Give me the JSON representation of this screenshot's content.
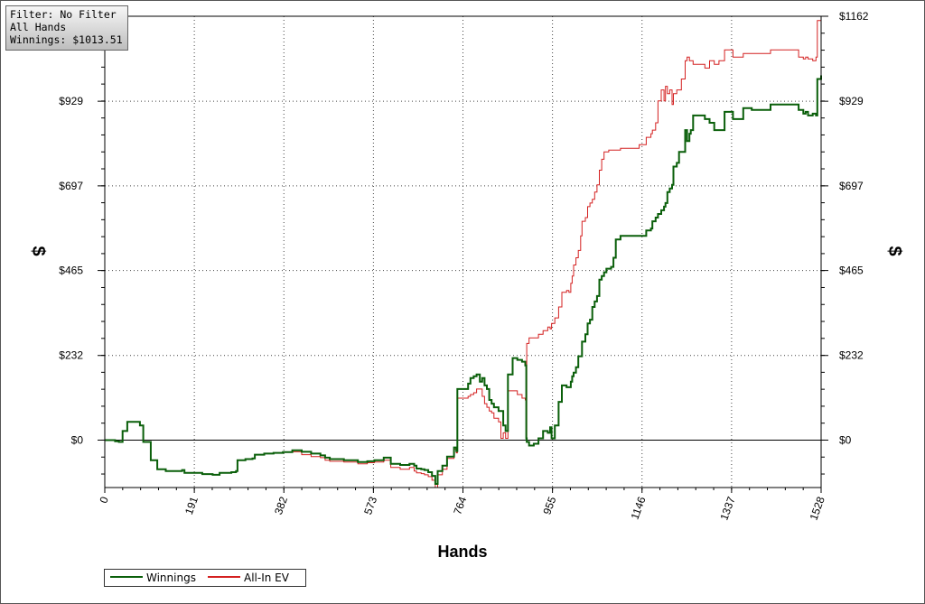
{
  "info_box": {
    "filter": "Filter: No Filter",
    "hands": "All Hands",
    "winnings": "Winnings: $1013.51"
  },
  "colors": {
    "winnings": "#0a5f0a",
    "all_in_ev": "#d42020",
    "grid": "#444444",
    "zero_line": "#000000"
  },
  "legend": {
    "items": [
      {
        "label": "Winnings",
        "color": "#0a5f0a"
      },
      {
        "label": "All-In EV",
        "color": "#d42020"
      }
    ]
  },
  "chart_data": {
    "type": "line",
    "xlabel": "Hands",
    "ylabel": "$",
    "xlim": [
      0,
      1528
    ],
    "ylim": [
      -130,
      1162
    ],
    "x_ticks": [
      "0",
      "191",
      "382",
      "573",
      "764",
      "955",
      "1146",
      "1337",
      "1528"
    ],
    "y_ticks": [
      "$0",
      "$232",
      "$465",
      "$697",
      "$929",
      "$1162"
    ],
    "y_tick_values": [
      0,
      232,
      465,
      697,
      929,
      1162
    ],
    "grid": true,
    "legend_position": "bottom-left",
    "series": [
      {
        "name": "Winnings",
        "step": true,
        "points": [
          [
            0,
            0
          ],
          [
            12,
            0
          ],
          [
            22,
            -3
          ],
          [
            30,
            -5
          ],
          [
            38,
            25
          ],
          [
            48,
            50
          ],
          [
            60,
            50
          ],
          [
            75,
            40
          ],
          [
            82,
            -5
          ],
          [
            98,
            -55
          ],
          [
            112,
            -80
          ],
          [
            130,
            -85
          ],
          [
            165,
            -82
          ],
          [
            170,
            -90
          ],
          [
            208,
            -93
          ],
          [
            230,
            -95
          ],
          [
            245,
            -90
          ],
          [
            270,
            -88
          ],
          [
            280,
            -85
          ],
          [
            283,
            -55
          ],
          [
            300,
            -52
          ],
          [
            315,
            -50
          ],
          [
            320,
            -40
          ],
          [
            340,
            -37
          ],
          [
            360,
            -35
          ],
          [
            380,
            -33
          ],
          [
            400,
            -28
          ],
          [
            420,
            -32
          ],
          [
            440,
            -37
          ],
          [
            460,
            -42
          ],
          [
            470,
            -48
          ],
          [
            480,
            -52
          ],
          [
            510,
            -55
          ],
          [
            540,
            -60
          ],
          [
            560,
            -58
          ],
          [
            575,
            -55
          ],
          [
            595,
            -48
          ],
          [
            610,
            -65
          ],
          [
            630,
            -68
          ],
          [
            650,
            -65
          ],
          [
            660,
            -70
          ],
          [
            665,
            -78
          ],
          [
            675,
            -80
          ],
          [
            682,
            -82
          ],
          [
            690,
            -88
          ],
          [
            698,
            -98
          ],
          [
            705,
            -120
          ],
          [
            710,
            -85
          ],
          [
            720,
            -70
          ],
          [
            730,
            -45
          ],
          [
            745,
            -20
          ],
          [
            750,
            -30
          ],
          [
            752,
            140
          ],
          [
            765,
            140
          ],
          [
            775,
            155
          ],
          [
            780,
            170
          ],
          [
            787,
            175
          ],
          [
            793,
            180
          ],
          [
            800,
            160
          ],
          [
            805,
            170
          ],
          [
            810,
            150
          ],
          [
            815,
            140
          ],
          [
            820,
            110
          ],
          [
            825,
            100
          ],
          [
            830,
            90
          ],
          [
            840,
            80
          ],
          [
            845,
            80
          ],
          [
            850,
            40
          ],
          [
            855,
            25
          ],
          [
            860,
            180
          ],
          [
            870,
            225
          ],
          [
            880,
            220
          ],
          [
            890,
            215
          ],
          [
            897,
            205
          ],
          [
            899,
            5
          ],
          [
            900,
            -5
          ],
          [
            905,
            -15
          ],
          [
            915,
            -10
          ],
          [
            925,
            5
          ],
          [
            935,
            25
          ],
          [
            945,
            20
          ],
          [
            950,
            35
          ],
          [
            953,
            5
          ],
          [
            960,
            40
          ],
          [
            968,
            105
          ],
          [
            975,
            150
          ],
          [
            985,
            145
          ],
          [
            990,
            145
          ],
          [
            994,
            160
          ],
          [
            997,
            175
          ],
          [
            1000,
            185
          ],
          [
            1005,
            200
          ],
          [
            1010,
            230
          ],
          [
            1015,
            230
          ],
          [
            1018,
            270
          ],
          [
            1025,
            290
          ],
          [
            1030,
            320
          ],
          [
            1035,
            330
          ],
          [
            1040,
            365
          ],
          [
            1045,
            380
          ],
          [
            1050,
            395
          ],
          [
            1055,
            440
          ],
          [
            1060,
            450
          ],
          [
            1065,
            460
          ],
          [
            1070,
            470
          ],
          [
            1075,
            470
          ],
          [
            1080,
            475
          ],
          [
            1085,
            500
          ],
          [
            1090,
            550
          ],
          [
            1100,
            560
          ],
          [
            1140,
            560
          ],
          [
            1155,
            575
          ],
          [
            1165,
            580
          ],
          [
            1168,
            600
          ],
          [
            1175,
            610
          ],
          [
            1180,
            620
          ],
          [
            1187,
            630
          ],
          [
            1193,
            640
          ],
          [
            1196,
            650
          ],
          [
            1200,
            680
          ],
          [
            1205,
            690
          ],
          [
            1210,
            700
          ],
          [
            1213,
            750
          ],
          [
            1220,
            760
          ],
          [
            1225,
            790
          ],
          [
            1230,
            790
          ],
          [
            1238,
            850
          ],
          [
            1242,
            820
          ],
          [
            1247,
            840
          ],
          [
            1250,
            850
          ],
          [
            1255,
            890
          ],
          [
            1262,
            890
          ],
          [
            1280,
            880
          ],
          [
            1290,
            870
          ],
          [
            1300,
            850
          ],
          [
            1310,
            850
          ],
          [
            1322,
            900
          ],
          [
            1340,
            880
          ],
          [
            1360,
            880
          ],
          [
            1362,
            910
          ],
          [
            1380,
            905
          ],
          [
            1420,
            920
          ],
          [
            1480,
            905
          ],
          [
            1490,
            895
          ],
          [
            1495,
            900
          ],
          [
            1500,
            890
          ],
          [
            1510,
            895
          ],
          [
            1517,
            890
          ],
          [
            1520,
            990
          ],
          [
            1528,
            1000
          ]
        ]
      },
      {
        "name": "All-In EV",
        "step": true,
        "points": [
          [
            0,
            0
          ],
          [
            12,
            0
          ],
          [
            22,
            -3
          ],
          [
            30,
            -5
          ],
          [
            38,
            25
          ],
          [
            48,
            50
          ],
          [
            60,
            50
          ],
          [
            75,
            40
          ],
          [
            82,
            -5
          ],
          [
            98,
            -55
          ],
          [
            112,
            -80
          ],
          [
            130,
            -85
          ],
          [
            165,
            -82
          ],
          [
            170,
            -90
          ],
          [
            208,
            -93
          ],
          [
            230,
            -95
          ],
          [
            245,
            -90
          ],
          [
            270,
            -88
          ],
          [
            280,
            -85
          ],
          [
            283,
            -55
          ],
          [
            300,
            -52
          ],
          [
            315,
            -50
          ],
          [
            320,
            -40
          ],
          [
            340,
            -37
          ],
          [
            360,
            -35
          ],
          [
            380,
            -33
          ],
          [
            400,
            -32
          ],
          [
            420,
            -40
          ],
          [
            440,
            -45
          ],
          [
            460,
            -48
          ],
          [
            470,
            -55
          ],
          [
            480,
            -58
          ],
          [
            510,
            -60
          ],
          [
            540,
            -65
          ],
          [
            560,
            -62
          ],
          [
            575,
            -60
          ],
          [
            595,
            -55
          ],
          [
            610,
            -75
          ],
          [
            630,
            -80
          ],
          [
            650,
            -75
          ],
          [
            660,
            -85
          ],
          [
            665,
            -90
          ],
          [
            675,
            -92
          ],
          [
            682,
            -95
          ],
          [
            690,
            -100
          ],
          [
            698,
            -110
          ],
          [
            705,
            -130
          ],
          [
            710,
            -95
          ],
          [
            720,
            -80
          ],
          [
            730,
            -50
          ],
          [
            745,
            -25
          ],
          [
            750,
            -35
          ],
          [
            752,
            115
          ],
          [
            765,
            115
          ],
          [
            775,
            120
          ],
          [
            780,
            125
          ],
          [
            787,
            130
          ],
          [
            793,
            140
          ],
          [
            800,
            140
          ],
          [
            805,
            120
          ],
          [
            810,
            100
          ],
          [
            815,
            90
          ],
          [
            820,
            80
          ],
          [
            825,
            75
          ],
          [
            830,
            60
          ],
          [
            840,
            50
          ],
          [
            845,
            5
          ],
          [
            850,
            20
          ],
          [
            855,
            5
          ],
          [
            860,
            135
          ],
          [
            870,
            135
          ],
          [
            880,
            125
          ],
          [
            890,
            115
          ],
          [
            897,
            110
          ],
          [
            899,
            5
          ],
          [
            900,
            265
          ],
          [
            905,
            280
          ],
          [
            915,
            280
          ],
          [
            925,
            290
          ],
          [
            935,
            300
          ],
          [
            945,
            310
          ],
          [
            950,
            305
          ],
          [
            953,
            320
          ],
          [
            960,
            335
          ],
          [
            968,
            365
          ],
          [
            975,
            405
          ],
          [
            985,
            410
          ],
          [
            990,
            405
          ],
          [
            994,
            430
          ],
          [
            997,
            450
          ],
          [
            1000,
            480
          ],
          [
            1005,
            500
          ],
          [
            1010,
            520
          ],
          [
            1015,
            560
          ],
          [
            1018,
            600
          ],
          [
            1025,
            610
          ],
          [
            1030,
            640
          ],
          [
            1035,
            650
          ],
          [
            1040,
            660
          ],
          [
            1045,
            680
          ],
          [
            1050,
            700
          ],
          [
            1055,
            740
          ],
          [
            1060,
            770
          ],
          [
            1065,
            790
          ],
          [
            1070,
            790
          ],
          [
            1075,
            795
          ],
          [
            1080,
            795
          ],
          [
            1085,
            795
          ],
          [
            1090,
            795
          ],
          [
            1100,
            800
          ],
          [
            1140,
            810
          ],
          [
            1155,
            830
          ],
          [
            1165,
            840
          ],
          [
            1168,
            850
          ],
          [
            1175,
            870
          ],
          [
            1180,
            930
          ],
          [
            1187,
            960
          ],
          [
            1193,
            930
          ],
          [
            1196,
            970
          ],
          [
            1200,
            950
          ],
          [
            1205,
            960
          ],
          [
            1210,
            920
          ],
          [
            1213,
            950
          ],
          [
            1220,
            960
          ],
          [
            1225,
            960
          ],
          [
            1230,
            990
          ],
          [
            1238,
            1040
          ],
          [
            1242,
            1050
          ],
          [
            1247,
            1040
          ],
          [
            1250,
            1040
          ],
          [
            1255,
            1030
          ],
          [
            1262,
            1030
          ],
          [
            1280,
            1020
          ],
          [
            1290,
            1040
          ],
          [
            1300,
            1030
          ],
          [
            1310,
            1040
          ],
          [
            1322,
            1070
          ],
          [
            1340,
            1050
          ],
          [
            1360,
            1050
          ],
          [
            1362,
            1060
          ],
          [
            1380,
            1060
          ],
          [
            1420,
            1070
          ],
          [
            1480,
            1050
          ],
          [
            1490,
            1045
          ],
          [
            1495,
            1050
          ],
          [
            1500,
            1045
          ],
          [
            1510,
            1040
          ],
          [
            1517,
            1050
          ],
          [
            1520,
            1150
          ],
          [
            1528,
            1162
          ]
        ]
      }
    ]
  }
}
